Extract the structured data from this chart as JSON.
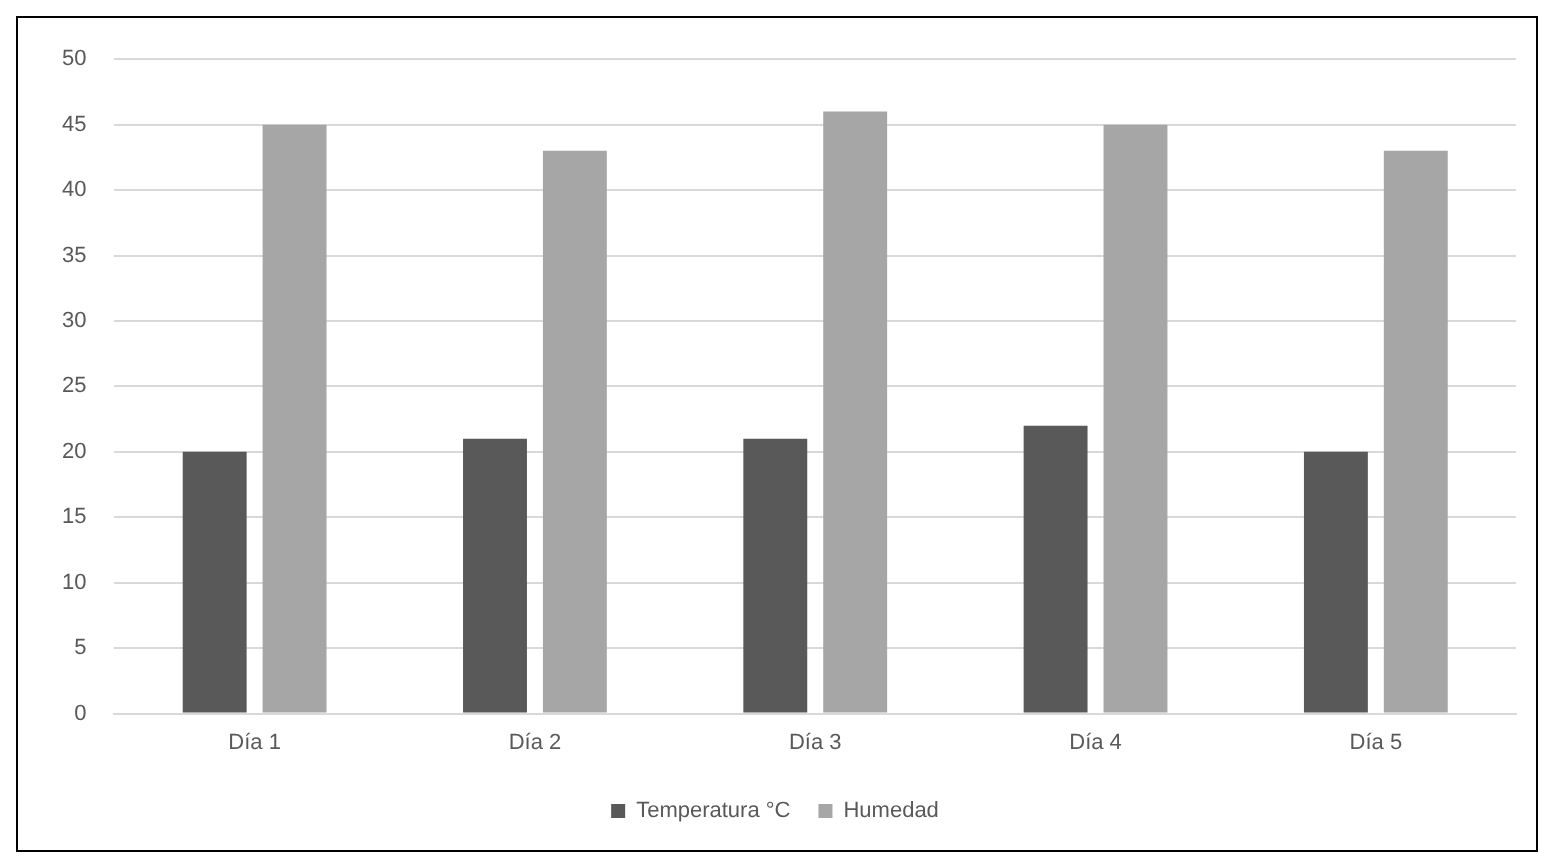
{
  "chart_data": {
    "type": "bar",
    "categories": [
      "Día 1",
      "Día 2",
      "Día 3",
      "Día 4",
      "Día 5"
    ],
    "series": [
      {
        "name": "Temperatura °C",
        "color": "#595959",
        "values": [
          20,
          21,
          21,
          22,
          20
        ]
      },
      {
        "name": "Humedad",
        "color": "#a6a6a6",
        "values": [
          45,
          43,
          46,
          45,
          43
        ]
      }
    ],
    "ylim": [
      0,
      50
    ],
    "yticks": [
      0,
      5,
      10,
      15,
      20,
      25,
      30,
      35,
      40,
      45,
      50
    ],
    "grid": "y",
    "legend": "bottom"
  }
}
